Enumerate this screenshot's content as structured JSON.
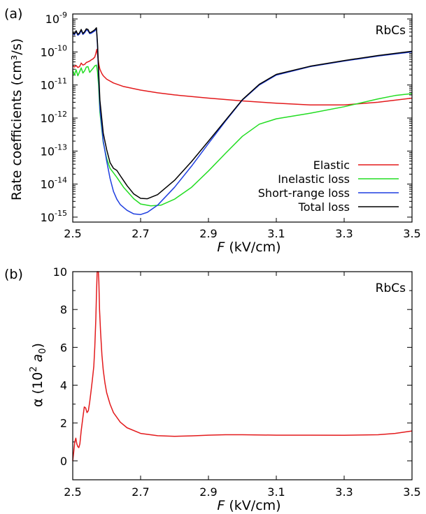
{
  "chart_data": [
    {
      "panel_label": "(a)",
      "type": "line",
      "title": "",
      "annotation": "RbCs",
      "xlabel_var": "F",
      "xlabel_unit": "(kV/cm)",
      "ylabel": "Rate coefficients (cm³/s)",
      "xlim": [
        2.5,
        3.5
      ],
      "ylim_log10": [
        -15.15,
        -8.85
      ],
      "yscale": "log",
      "grid": false,
      "legend_position": "lower-right",
      "xticks": [
        2.5,
        2.7,
        2.9,
        3.1,
        3.3,
        3.5
      ],
      "xtick_labels": [
        "2.5",
        "2.7",
        "2.9",
        "3.1",
        "3.3",
        "3.5"
      ],
      "yticks_log10": [
        -15,
        -14,
        -13,
        -12,
        -11,
        -10,
        -9
      ],
      "ytick_base": "10",
      "ytick_exponents": [
        "-15",
        "-14",
        "-13",
        "-12",
        "-11",
        "-10",
        "-9"
      ],
      "series": [
        {
          "name": "Elastic",
          "color": "#e31a1c",
          "x": [
            2.5,
            2.505,
            2.51,
            2.515,
            2.52,
            2.525,
            2.53,
            2.535,
            2.54,
            2.545,
            2.55,
            2.555,
            2.56,
            2.565,
            2.568,
            2.571,
            2.574,
            2.577,
            2.58,
            2.585,
            2.59,
            2.6,
            2.62,
            2.65,
            2.7,
            2.75,
            2.8,
            2.9,
            3.0,
            3.1,
            3.2,
            3.3,
            3.4,
            3.5
          ],
          "y": [
            3.8e-11,
            3.5e-11,
            3.9e-11,
            3.4e-11,
            3.6e-11,
            4.6e-11,
            4e-11,
            4.2e-11,
            4.8e-11,
            5e-11,
            5.3e-11,
            5.8e-11,
            6.2e-11,
            7e-11,
            9e-11,
            1.2e-10,
            7e-11,
            4.2e-11,
            3e-11,
            2.3e-11,
            1.9e-11,
            1.5e-11,
            1.15e-11,
            9e-12,
            7e-12,
            5.8e-12,
            5e-12,
            4e-12,
            3.3e-12,
            2.8e-12,
            2.5e-12,
            2.5e-12,
            3e-12,
            4e-12
          ]
        },
        {
          "name": "Inelastic loss",
          "color": "#22dd22",
          "x": [
            2.5,
            2.505,
            2.51,
            2.515,
            2.52,
            2.525,
            2.53,
            2.535,
            2.54,
            2.545,
            2.55,
            2.555,
            2.56,
            2.565,
            2.57,
            2.573,
            2.576,
            2.58,
            2.59,
            2.6,
            2.61,
            2.62,
            2.63,
            2.65,
            2.68,
            2.7,
            2.73,
            2.76,
            2.8,
            2.85,
            2.9,
            2.95,
            3.0,
            3.05,
            3.1,
            3.2,
            3.3,
            3.4,
            3.45,
            3.5
          ],
          "y": [
            2.8e-11,
            2e-11,
            2.9e-11,
            1.9e-11,
            2.5e-11,
            3.3e-11,
            2.3e-11,
            2.7e-11,
            3.5e-11,
            3.6e-11,
            2.4e-11,
            2.8e-11,
            3.2e-11,
            3.8e-11,
            4e-11,
            2.5e-11,
            1e-11,
            1.5e-12,
            1.8e-13,
            6e-14,
            3e-14,
            2.2e-14,
            1.6e-14,
            8e-15,
            3.6e-15,
            2.5e-15,
            2.2e-15,
            2.3e-15,
            3.5e-15,
            8e-15,
            2.5e-14,
            8.5e-14,
            2.8e-13,
            6.5e-13,
            9.5e-13,
            1.4e-12,
            2.2e-12,
            3.8e-12,
            4.8e-12,
            5.5e-12
          ]
        },
        {
          "name": "Short-range loss",
          "color": "#1f3fe0",
          "x": [
            2.5,
            2.505,
            2.51,
            2.515,
            2.52,
            2.525,
            2.53,
            2.535,
            2.54,
            2.545,
            2.55,
            2.555,
            2.56,
            2.565,
            2.57,
            2.573,
            2.576,
            2.58,
            2.59,
            2.6,
            2.61,
            2.62,
            2.63,
            2.64,
            2.66,
            2.68,
            2.7,
            2.72,
            2.75,
            2.8,
            2.85,
            2.9,
            2.95,
            3.0,
            3.05,
            3.1,
            3.2,
            3.3,
            3.4,
            3.5
          ],
          "y": [
            3.6e-10,
            3.3e-10,
            4.1e-10,
            3.2e-10,
            3.5e-10,
            4.5e-10,
            3.4e-10,
            3.8e-10,
            4.6e-10,
            4.4e-10,
            3.6e-10,
            3.7e-10,
            4e-10,
            4.3e-10,
            5e-10,
            1.5e-10,
            2e-11,
            2e-12,
            2e-13,
            5e-14,
            1.5e-14,
            6e-15,
            3.5e-15,
            2.4e-15,
            1.6e-15,
            1.25e-15,
            1.2e-15,
            1.4e-15,
            2.3e-15,
            8e-15,
            3.5e-14,
            1.7e-13,
            8e-13,
            3.5e-12,
            1e-11,
            2e-11,
            3.6e-11,
            5.3e-11,
            7.5e-11,
            1e-10
          ]
        },
        {
          "name": "Total loss",
          "color": "#000000",
          "x": [
            2.5,
            2.505,
            2.51,
            2.515,
            2.52,
            2.525,
            2.53,
            2.535,
            2.54,
            2.545,
            2.55,
            2.555,
            2.56,
            2.565,
            2.57,
            2.573,
            2.576,
            2.58,
            2.59,
            2.6,
            2.61,
            2.62,
            2.63,
            2.64,
            2.66,
            2.68,
            2.7,
            2.72,
            2.75,
            2.8,
            2.85,
            2.9,
            2.95,
            3.0,
            3.05,
            3.1,
            3.2,
            3.3,
            3.4,
            3.5
          ],
          "y": [
            3.9e-10,
            3.5e-10,
            4.4e-10,
            3.4e-10,
            3.8e-10,
            4.8e-10,
            3.6e-10,
            4.1e-10,
            5e-10,
            4.8e-10,
            3.8e-10,
            4e-10,
            4.3e-10,
            4.7e-10,
            5.4e-10,
            1.8e-10,
            3e-11,
            3.5e-12,
            3.5e-13,
            1.1e-13,
            4.5e-14,
            3e-14,
            2.6e-14,
            1.8e-14,
            9e-15,
            5e-15,
            3.7e-15,
            3.6e-15,
            4.8e-15,
            1.3e-14,
            4.8e-14,
            2e-13,
            8.5e-13,
            3.6e-12,
            1.05e-11,
            2.1e-11,
            3.7e-11,
            5.5e-11,
            7.8e-11,
            1.05e-10
          ]
        }
      ]
    },
    {
      "panel_label": "(b)",
      "type": "line",
      "title": "",
      "annotation": "RbCs",
      "xlabel_var": "F",
      "xlabel_unit": "(kV/cm)",
      "ylabel_prefix": "α (10",
      "ylabel_exp": "2",
      "ylabel_var": "a",
      "ylabel_sub": "0",
      "ylabel_suffix": ")",
      "xlim": [
        2.5,
        3.5
      ],
      "ylim": [
        -1,
        10
      ],
      "grid": false,
      "xticks": [
        2.5,
        2.7,
        2.9,
        3.1,
        3.3,
        3.5
      ],
      "xtick_labels": [
        "2.5",
        "2.7",
        "2.9",
        "3.1",
        "3.3",
        "3.5"
      ],
      "yticks": [
        0,
        2,
        4,
        6,
        8,
        10
      ],
      "ytick_labels": [
        "0",
        "2",
        "4",
        "6",
        "8",
        "10"
      ],
      "series": [
        {
          "color": "#e31a1c",
          "x": [
            2.5,
            2.503,
            2.506,
            2.509,
            2.512,
            2.515,
            2.518,
            2.521,
            2.525,
            2.53,
            2.534,
            2.538,
            2.542,
            2.546,
            2.55,
            2.554,
            2.558,
            2.562,
            2.565,
            2.568,
            2.57,
            2.572,
            2.574,
            2.5755,
            2.577,
            2.579,
            2.582,
            2.586,
            2.59,
            2.595,
            2.6,
            2.61,
            2.62,
            2.64,
            2.66,
            2.7,
            2.75,
            2.8,
            2.85,
            2.9,
            2.95,
            3.0,
            3.1,
            3.2,
            3.3,
            3.4,
            3.45,
            3.5
          ],
          "y": [
            0.0,
            0.5,
            1.0,
            1.2,
            0.9,
            0.75,
            0.7,
            0.9,
            1.6,
            2.3,
            2.85,
            2.8,
            2.55,
            2.65,
            3.1,
            3.7,
            4.3,
            5.0,
            6.0,
            7.5,
            8.8,
            10.0,
            10.0,
            10.0,
            9.5,
            8.0,
            6.8,
            5.6,
            4.8,
            4.1,
            3.6,
            3.0,
            2.55,
            2.05,
            1.75,
            1.45,
            1.33,
            1.3,
            1.32,
            1.36,
            1.38,
            1.38,
            1.36,
            1.36,
            1.35,
            1.38,
            1.45,
            1.58
          ]
        }
      ]
    }
  ]
}
